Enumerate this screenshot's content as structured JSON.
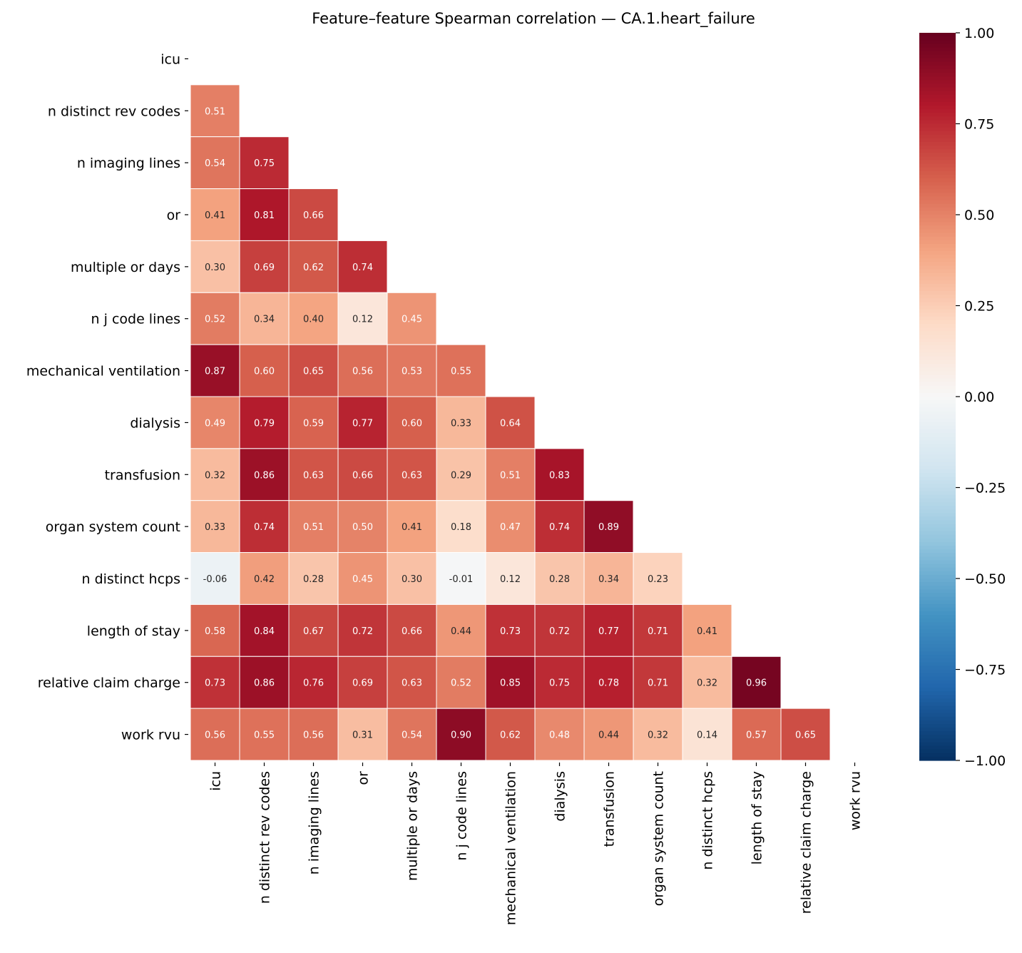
{
  "chart_data": {
    "type": "heatmap",
    "title": "Feature–feature Spearman correlation — CA.1.heart_failure",
    "labels": [
      "icu",
      "n distinct rev codes",
      "n imaging lines",
      "or",
      "multiple or days",
      "n j code lines",
      "mechanical ventilation",
      "dialysis",
      "transfusion",
      "organ system count",
      "n distinct hcps",
      "length of stay",
      "relative claim charge",
      "work rvu"
    ],
    "lower_triangle_values": [
      [],
      [
        0.51
      ],
      [
        0.54,
        0.75
      ],
      [
        0.41,
        0.81,
        0.66
      ],
      [
        0.3,
        0.69,
        0.62,
        0.74
      ],
      [
        0.52,
        0.34,
        0.4,
        0.12,
        0.45
      ],
      [
        0.87,
        0.6,
        0.65,
        0.56,
        0.53,
        0.55
      ],
      [
        0.49,
        0.79,
        0.59,
        0.77,
        0.6,
        0.33,
        0.64
      ],
      [
        0.32,
        0.86,
        0.63,
        0.66,
        0.63,
        0.29,
        0.51,
        0.83
      ],
      [
        0.33,
        0.74,
        0.51,
        0.5,
        0.41,
        0.18,
        0.47,
        0.74,
        0.89
      ],
      [
        -0.06,
        0.42,
        0.28,
        0.45,
        0.3,
        -0.01,
        0.12,
        0.28,
        0.34,
        0.23
      ],
      [
        0.58,
        0.84,
        0.67,
        0.72,
        0.66,
        0.44,
        0.73,
        0.72,
        0.77,
        0.71,
        0.41
      ],
      [
        0.73,
        0.86,
        0.76,
        0.69,
        0.63,
        0.52,
        0.85,
        0.75,
        0.78,
        0.71,
        0.32,
        0.96
      ],
      [
        0.56,
        0.55,
        0.56,
        0.31,
        0.54,
        0.9,
        0.62,
        0.48,
        0.44,
        0.32,
        0.14,
        0.57,
        0.65
      ]
    ],
    "mask": "upper triangle incl. diagonal",
    "colormap": "RdBu_r",
    "vmin": -1,
    "vmax": 1,
    "colorbar_ticks": [
      "1.00",
      "0.75",
      "0.50",
      "0.25",
      "0.00",
      "−0.25",
      "−0.50",
      "−0.75",
      "−1.00"
    ],
    "colorbar_tick_values": [
      1,
      0.75,
      0.5,
      0.25,
      0,
      -0.25,
      -0.5,
      -0.75,
      -1
    ],
    "annotation_format": "0.00"
  }
}
